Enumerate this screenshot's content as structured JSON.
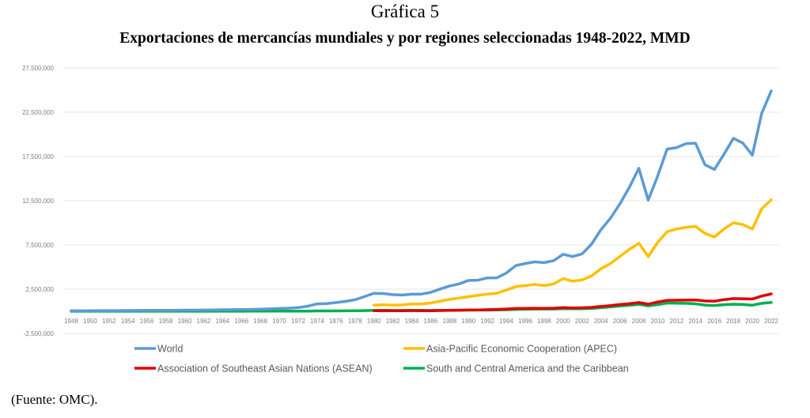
{
  "heading": "Gráfica 5",
  "source": "(Fuente: OMC).",
  "chart_data": {
    "type": "line",
    "title": "Exportaciones de mercancías mundiales y por regiones seleccionadas 1948-2022, MMD",
    "xlabel": "",
    "ylabel": "",
    "ylim": [
      -2500000,
      27500000
    ],
    "xlim": [
      1948,
      2022
    ],
    "grid": true,
    "legend_position": "bottom",
    "y_ticks": [
      "27,500,000",
      "22,500,000",
      "17,500,000",
      "12,500,000",
      "7,500,000",
      "2,500,000",
      "-2,500,000"
    ],
    "y_tick_values": [
      27500000,
      22500000,
      17500000,
      12500000,
      7500000,
      2500000,
      -2500000
    ],
    "x_ticks": [
      "1948",
      "1950",
      "1952",
      "1954",
      "1956",
      "1958",
      "1960",
      "1962",
      "1964",
      "1966",
      "1968",
      "1970",
      "1972",
      "1974",
      "1976",
      "1978",
      "1980",
      "1982",
      "1984",
      "1986",
      "1988",
      "1990",
      "1992",
      "1994",
      "1996",
      "1998",
      "2000",
      "2002",
      "2004",
      "2006",
      "2008",
      "2010",
      "2012",
      "2014",
      "2016",
      "2018",
      "2020",
      "2022"
    ],
    "series": [
      {
        "name": "World",
        "color": "#5b9bd5",
        "start_year": 1948,
        "values": [
          58500,
          58000,
          62000,
          82000,
          80000,
          83000,
          86000,
          94000,
          104000,
          112000,
          108000,
          116000,
          130000,
          135000,
          142000,
          157000,
          175000,
          190000,
          206000,
          215000,
          240000,
          274000,
          317000,
          354000,
          418000,
          579000,
          839000,
          877000,
          992000,
          1128000,
          1307000,
          1659000,
          2036000,
          2010000,
          1880000,
          1840000,
          1950000,
          1950000,
          2140000,
          2520000,
          2870000,
          3100000,
          3490000,
          3520000,
          3780000,
          3790000,
          4330000,
          5170000,
          5400000,
          5590000,
          5500000,
          5720000,
          6450000,
          6190000,
          6490000,
          7590000,
          9220000,
          10510000,
          12130000,
          14010000,
          16160000,
          12560000,
          15300000,
          18340000,
          18500000,
          18950000,
          19000000,
          16550000,
          16040000,
          17740000,
          19550000,
          19010000,
          17650000,
          22380000,
          24900000
        ]
      },
      {
        "name": "Asia-Pacific Economic Cooperation (APEC)",
        "color": "#ffc000",
        "start_year": 1980,
        "values": [
          700000,
          750000,
          700000,
          720000,
          820000,
          820000,
          950000,
          1150000,
          1350000,
          1500000,
          1650000,
          1800000,
          1950000,
          2050000,
          2400000,
          2800000,
          2900000,
          3050000,
          2900000,
          3100000,
          3700000,
          3400000,
          3550000,
          4000000,
          4800000,
          5400000,
          6200000,
          7000000,
          7700000,
          6200000,
          7800000,
          9000000,
          9300000,
          9500000,
          9600000,
          8800000,
          8400000,
          9300000,
          10000000,
          9800000,
          9300000,
          11600000,
          12600000
        ]
      },
      {
        "name": "Association of Southeast Asian Nations (ASEAN)",
        "color": "#e00000",
        "start_year": 1980,
        "values": [
          72000,
          75000,
          72000,
          73000,
          78000,
          73000,
          70000,
          85000,
          105000,
          125000,
          145000,
          165000,
          190000,
          215000,
          260000,
          320000,
          340000,
          350000,
          330000,
          360000,
          430000,
          385000,
          405000,
          450000,
          550000,
          650000,
          770000,
          860000,
          990000,
          810000,
          1050000,
          1240000,
          1250000,
          1270000,
          1290000,
          1170000,
          1150000,
          1320000,
          1440000,
          1420000,
          1390000,
          1720000,
          1960000
        ]
      },
      {
        "name": "South and Central America and the Caribbean",
        "color": "#00b050",
        "start_year": 1948,
        "values": [
          6000,
          6000,
          6500,
          7000,
          7000,
          7200,
          7500,
          7800,
          8000,
          8200,
          8300,
          8500,
          8700,
          9000,
          9500,
          10000,
          11000,
          12000,
          13000,
          13500,
          14500,
          15500,
          17000,
          18000,
          21000,
          30000,
          45000,
          43000,
          48000,
          56000,
          60000,
          78000,
          105000,
          110000,
          100000,
          98000,
          108000,
          105000,
          95000,
          105000,
          120000,
          135000,
          145000,
          140000,
          145000,
          155000,
          180000,
          215000,
          235000,
          260000,
          255000,
          260000,
          300000,
          290000,
          290000,
          325000,
          410000,
          500000,
          600000,
          680000,
          790000,
          620000,
          760000,
          940000,
          920000,
          900000,
          850000,
          700000,
          660000,
          750000,
          800000,
          770000,
          700000,
          900000,
          1000000
        ]
      }
    ]
  }
}
